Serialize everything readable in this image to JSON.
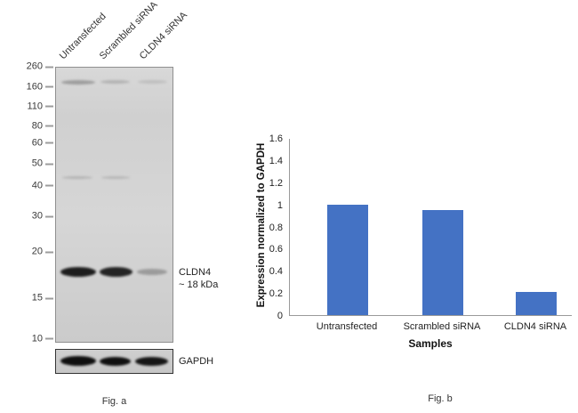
{
  "figure_a": {
    "caption": "Fig. a",
    "lane_labels": [
      "Untransfected",
      "Scrambled siRNA",
      "CLDN4 siRNA"
    ],
    "mw_markers": [
      "260",
      "160",
      "110",
      "80",
      "60",
      "50",
      "40",
      "30",
      "20",
      "15",
      "10"
    ],
    "target_band_label_line1": "CLDN4",
    "target_band_label_line2": "~ 18 kDa",
    "loading_control_label": "GAPDH"
  },
  "figure_b": {
    "caption": "Fig. b"
  },
  "chart_data": {
    "type": "bar",
    "categories": [
      "Untransfected",
      "Scrambled siRNA",
      "CLDN4 siRNA"
    ],
    "values": [
      1.0,
      0.95,
      0.21
    ],
    "title": "",
    "xlabel": "Samples",
    "ylabel": "Expression normalized to GAPDH",
    "ylim": [
      0,
      1.6
    ],
    "yticks": [
      0,
      0.2,
      0.4,
      0.6,
      0.8,
      1,
      1.2,
      1.4,
      1.6
    ],
    "bar_color": "#4472c4",
    "grid": false,
    "legend": false
  }
}
